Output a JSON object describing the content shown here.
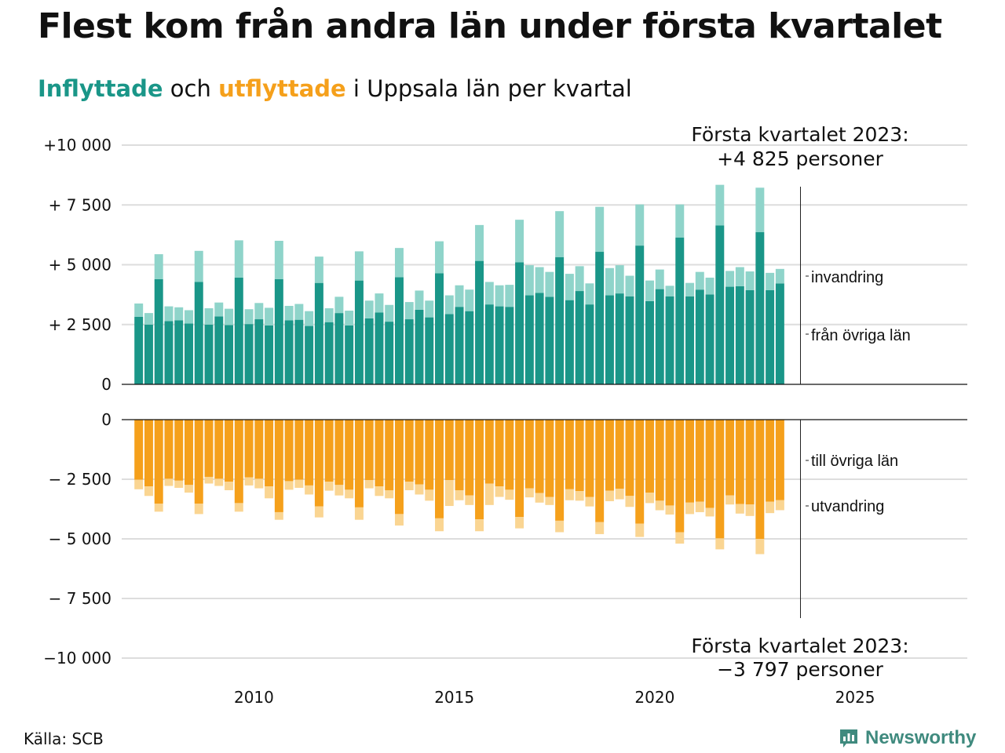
{
  "title": "Flest kom från andra län under första kvartalet",
  "subtitle": {
    "in_word": "Inflyttade",
    "and_word": " och ",
    "out_word": "utflyttade",
    "rest": " i Uppsala län per kvartal"
  },
  "colors": {
    "in_dark": "#1a9688",
    "in_light": "#8fd4ca",
    "out_dark": "#f5a01b",
    "out_light": "#fad592",
    "grid": "#dddddd",
    "axis": "#111111"
  },
  "annotations": {
    "top_line1": "Första kvartalet 2023:",
    "top_line2": "+4 825 personer",
    "bottom_line1": "Första kvartalet 2023:",
    "bottom_line2": "−3 797 personer"
  },
  "series_labels": {
    "in_total": "invandring",
    "in_base": "från övriga län",
    "out_base": "till övriga län",
    "out_total": "utvandring"
  },
  "source": "Källa: SCB",
  "brand": {
    "name": "Newsworthy",
    "icon": "newsworthy-logo-icon"
  },
  "chart_data": [
    {
      "type": "bar",
      "stacked": true,
      "panel": "Inflyttade",
      "x_start_year": 2007,
      "x_start_quarter": 1,
      "xlim": [
        2006.7,
        2027.8
      ],
      "ylim": [
        0,
        10000
      ],
      "ytick_labels": [
        "0",
        "+ 2 500",
        "+ 5 000",
        "+ 7 500",
        "+10 000"
      ],
      "xtick_labels": [
        "2010",
        "2015",
        "2020",
        "2025"
      ],
      "grid": true,
      "series": [
        {
          "name": "från övriga län",
          "values": [
            2820,
            2500,
            4400,
            2640,
            2680,
            2540,
            4280,
            2500,
            2840,
            2480,
            4460,
            2520,
            2720,
            2460,
            4400,
            2680,
            2700,
            2440,
            4240,
            2600,
            2980,
            2460,
            4340,
            2760,
            3000,
            2620,
            4480,
            2720,
            3120,
            2800,
            4640,
            2940,
            3240,
            3060,
            5160,
            3340,
            3260,
            3240,
            5100,
            3720,
            3820,
            3660,
            5320,
            3520,
            3900,
            3340,
            5540,
            3720,
            3800,
            3680,
            5800,
            3480,
            3980,
            3680,
            6140,
            3680,
            3960,
            3760,
            6640,
            4080,
            4100,
            3940,
            6360,
            3940,
            4220
          ]
        },
        {
          "name": "invandring",
          "values": [
            560,
            480,
            1040,
            620,
            540,
            560,
            1300,
            680,
            580,
            680,
            1560,
            620,
            680,
            740,
            1600,
            600,
            660,
            620,
            1100,
            580,
            680,
            620,
            1220,
            740,
            800,
            700,
            1220,
            720,
            800,
            700,
            1340,
            780,
            900,
            900,
            1500,
            940,
            880,
            920,
            1780,
            1260,
            1080,
            1040,
            1920,
            1100,
            1040,
            880,
            1880,
            1140,
            1180,
            860,
            1720,
            860,
            820,
            440,
            1380,
            560,
            740,
            700,
            1700,
            660,
            800,
            780,
            1860,
            720,
            605
          ]
        }
      ]
    },
    {
      "type": "bar",
      "stacked": true,
      "panel": "Utflyttade",
      "x_start_year": 2007,
      "x_start_quarter": 1,
      "xlim": [
        2006.7,
        2027.8
      ],
      "ylim": [
        -10000,
        0
      ],
      "ytick_labels": [
        "0",
        "− 2 500",
        "− 5 000",
        "− 7 500",
        "−10 000"
      ],
      "xtick_labels": [
        "2010",
        "2015",
        "2020",
        "2025"
      ],
      "grid": true,
      "series": [
        {
          "name": "till övriga län",
          "values": [
            -2520,
            -2800,
            -3520,
            -2480,
            -2560,
            -2740,
            -3520,
            -2400,
            -2480,
            -2600,
            -3500,
            -2420,
            -2480,
            -2800,
            -3880,
            -2580,
            -2520,
            -2760,
            -3640,
            -2600,
            -2740,
            -2940,
            -3680,
            -2540,
            -2800,
            -2960,
            -3960,
            -2600,
            -2720,
            -2940,
            -4140,
            -2540,
            -2960,
            -3180,
            -4180,
            -2680,
            -2800,
            -2940,
            -4080,
            -2880,
            -3080,
            -3240,
            -4240,
            -2920,
            -3000,
            -3240,
            -4300,
            -2980,
            -2900,
            -3200,
            -4360,
            -3060,
            -3400,
            -3600,
            -4720,
            -3480,
            -3440,
            -3700,
            -4980,
            -3180,
            -3540,
            -3560,
            -5000,
            -3440,
            -3380
          ]
        },
        {
          "name": "utvandring",
          "values": [
            -400,
            -400,
            -340,
            -300,
            -300,
            -320,
            -440,
            -280,
            -300,
            -360,
            -360,
            -340,
            -400,
            -500,
            -320,
            -360,
            -340,
            -380,
            -460,
            -380,
            -440,
            -360,
            -520,
            -340,
            -400,
            -340,
            -480,
            -360,
            -420,
            -460,
            -540,
            -1080,
            -420,
            -400,
            -500,
            -900,
            -440,
            -420,
            -480,
            -380,
            -400,
            -340,
            -480,
            -460,
            -400,
            -400,
            -500,
            -440,
            -440,
            -460,
            -560,
            -440,
            -400,
            -380,
            -480,
            -480,
            -440,
            -360,
            -460,
            -380,
            -400,
            -480,
            -640,
            -480,
            -417
          ]
        }
      ]
    }
  ]
}
